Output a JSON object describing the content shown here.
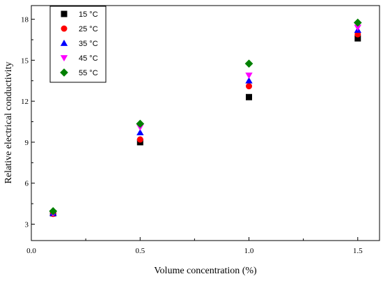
{
  "chart_data": {
    "type": "scatter",
    "xlabel": "Volume concentration (%)",
    "ylabel": "Relative electrical conductivity",
    "xlim": [
      0.0,
      1.6
    ],
    "ylim": [
      1.8,
      19
    ],
    "x_ticks": [
      "0.0",
      "0.5",
      "1.0",
      "1.5"
    ],
    "y_ticks": [
      "3",
      "6",
      "9",
      "12",
      "15",
      "18"
    ],
    "grid": false,
    "legend_position": "top-left",
    "series": [
      {
        "name": "15 °C",
        "marker": "square",
        "color": "#000000",
        "x": [
          0.1,
          0.5,
          1.0,
          1.5
        ],
        "y": [
          3.8,
          9.0,
          12.3,
          16.6
        ]
      },
      {
        "name": "25 °C",
        "marker": "circle",
        "color": "#ff0000",
        "x": [
          0.1,
          0.5,
          1.0,
          1.5
        ],
        "y": [
          3.75,
          9.2,
          13.1,
          16.9
        ]
      },
      {
        "name": "35 °C",
        "marker": "triangle-up",
        "color": "#0000ff",
        "x": [
          0.1,
          0.5,
          1.0,
          1.5
        ],
        "y": [
          3.8,
          9.7,
          13.5,
          17.2
        ]
      },
      {
        "name": "45 °C",
        "marker": "triangle-down",
        "color": "#ff00ff",
        "x": [
          0.1,
          0.5,
          1.0,
          1.5
        ],
        "y": [
          3.8,
          10.1,
          13.9,
          17.4
        ]
      },
      {
        "name": "55 °C",
        "marker": "diamond",
        "color": "#008000",
        "x": [
          0.1,
          0.5,
          1.0,
          1.5
        ],
        "y": [
          3.95,
          10.35,
          14.75,
          17.75
        ]
      }
    ]
  }
}
